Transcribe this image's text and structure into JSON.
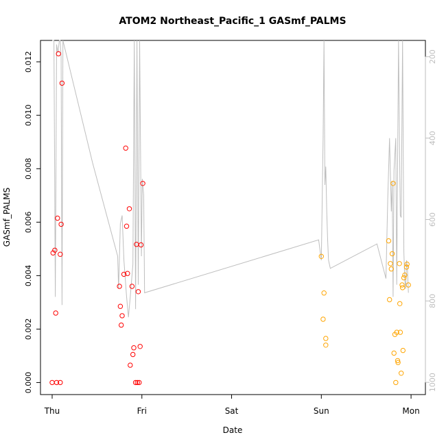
{
  "chart_data": {
    "type": "scatter",
    "title": "ATOM2 Northeast_Pacific_1 GASmf_PALMS",
    "xlabel": "Date",
    "ylabel": "GASmf_PALMS",
    "x_ticks": [
      "Thu",
      "Fri",
      "Sat",
      "Sun",
      "Mon"
    ],
    "x_unit": "days since Thursday 00:00",
    "xlim": [
      -0.13,
      4.16
    ],
    "ylim": [
      -0.00045,
      0.0128
    ],
    "y_ticks": [
      0.0,
      0.002,
      0.004,
      0.006,
      0.008,
      0.01,
      0.012
    ],
    "y_tick_labels": [
      "0.000",
      "0.002",
      "0.004",
      "0.006",
      "0.008",
      "0.010",
      "0.012"
    ],
    "y2_ticks": [
      200,
      400,
      600,
      800,
      1000
    ],
    "y2_tick_labels": [
      "200",
      "400",
      "600",
      "800",
      "1000"
    ],
    "y2lim": [
      1030,
      160
    ],
    "grid": false,
    "series": [
      {
        "color": "#ff0000",
        "points": [
          [
            0.0,
            0.0
          ],
          [
            0.05,
            0.0
          ],
          [
            0.09,
            0.0
          ],
          [
            0.01,
            0.00485
          ],
          [
            0.03,
            0.00495
          ],
          [
            0.09,
            0.0048
          ],
          [
            0.04,
            0.0026
          ],
          [
            0.06,
            0.00615
          ],
          [
            0.1,
            0.00592
          ],
          [
            0.07,
            0.0123
          ],
          [
            0.11,
            0.0112
          ],
          [
            0.75,
            0.0036
          ],
          [
            0.76,
            0.00285
          ],
          [
            0.77,
            0.00215
          ],
          [
            0.78,
            0.0025
          ],
          [
            0.8,
            0.00405
          ],
          [
            0.82,
            0.00877
          ],
          [
            0.83,
            0.00585
          ],
          [
            0.84,
            0.00408
          ],
          [
            0.86,
            0.0065
          ],
          [
            0.87,
            0.00065
          ],
          [
            0.89,
            0.0036
          ],
          [
            0.9,
            0.00105
          ],
          [
            0.91,
            0.0013
          ],
          [
            0.93,
            0.0
          ],
          [
            0.94,
            0.00517
          ],
          [
            0.95,
            0.0
          ],
          [
            0.96,
            0.0034
          ],
          [
            0.97,
            0.0
          ],
          [
            0.98,
            0.00135
          ],
          [
            0.99,
            0.00515
          ],
          [
            1.01,
            0.00745
          ]
        ]
      },
      {
        "color": "#ffa500",
        "points": [
          [
            3.0,
            0.00472
          ],
          [
            3.02,
            0.00237
          ],
          [
            3.03,
            0.00335
          ],
          [
            3.05,
            0.00165
          ],
          [
            3.05,
            0.0014
          ],
          [
            3.75,
            0.0053
          ],
          [
            3.76,
            0.0031
          ],
          [
            3.77,
            0.00445
          ],
          [
            3.78,
            0.00425
          ],
          [
            3.79,
            0.00482
          ],
          [
            3.8,
            0.00745
          ],
          [
            3.81,
            0.0011
          ],
          [
            3.82,
            0.0018
          ],
          [
            3.83,
            0.0
          ],
          [
            3.84,
            0.00188
          ],
          [
            3.85,
            0.00082
          ],
          [
            3.855,
            0.00075
          ],
          [
            3.87,
            0.00445
          ],
          [
            3.875,
            0.00295
          ],
          [
            3.88,
            0.00188
          ],
          [
            3.89,
            0.00035
          ],
          [
            3.9,
            0.00365
          ],
          [
            3.905,
            0.00355
          ],
          [
            3.91,
            0.0012
          ],
          [
            3.92,
            0.00392
          ],
          [
            3.93,
            0.00402
          ],
          [
            3.95,
            0.00432
          ],
          [
            3.955,
            0.00443
          ],
          [
            3.97,
            0.00365
          ]
        ]
      }
    ],
    "secondary_line": {
      "color": "#bebebe",
      "unit": "y2",
      "points": [
        [
          0.0,
          110
        ],
        [
          0.01,
          130
        ],
        [
          0.02,
          150
        ],
        [
          0.035,
          790
        ],
        [
          0.05,
          170
        ],
        [
          0.065,
          190
        ],
        [
          0.08,
          150
        ],
        [
          0.09,
          110
        ],
        [
          0.1,
          200
        ],
        [
          0.11,
          810
        ],
        [
          0.12,
          3
        ],
        [
          0.45,
          460
        ],
        [
          0.73,
          690
        ],
        [
          0.74,
          770
        ],
        [
          0.76,
          610
        ],
        [
          0.78,
          590
        ],
        [
          0.8,
          700
        ],
        [
          0.83,
          790
        ],
        [
          0.85,
          840
        ],
        [
          0.87,
          790
        ],
        [
          0.9,
          710
        ],
        [
          0.915,
          40
        ],
        [
          0.93,
          820
        ],
        [
          0.945,
          40
        ],
        [
          0.96,
          760
        ],
        [
          0.975,
          5
        ],
        [
          0.995,
          690
        ],
        [
          1.005,
          500
        ],
        [
          1.02,
          540
        ],
        [
          1.03,
          780
        ],
        [
          2.97,
          650
        ],
        [
          3.0,
          700
        ],
        [
          3.02,
          400
        ],
        [
          3.03,
          15
        ],
        [
          3.04,
          515
        ],
        [
          3.05,
          470
        ],
        [
          3.06,
          580
        ],
        [
          3.07,
          650
        ],
        [
          3.08,
          700
        ],
        [
          3.1,
          720
        ],
        [
          3.62,
          660
        ],
        [
          3.72,
          745
        ],
        [
          3.74,
          550
        ],
        [
          3.76,
          400
        ],
        [
          3.78,
          580
        ],
        [
          3.79,
          505
        ],
        [
          3.8,
          790
        ],
        [
          3.81,
          480
        ],
        [
          3.82,
          440
        ],
        [
          3.83,
          400
        ],
        [
          3.84,
          760
        ],
        [
          3.86,
          0
        ],
        [
          3.875,
          490
        ],
        [
          3.88,
          590
        ],
        [
          3.89,
          595
        ],
        [
          3.905,
          0
        ],
        [
          3.92,
          680
        ],
        [
          3.93,
          750
        ],
        [
          3.94,
          770
        ],
        [
          3.95,
          700
        ],
        [
          3.96,
          720
        ],
        [
          3.97,
          780
        ]
      ]
    }
  }
}
